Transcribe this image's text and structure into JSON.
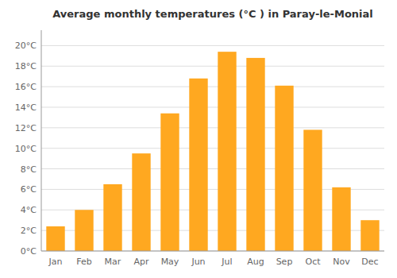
{
  "chart_data": {
    "type": "bar",
    "title": "Average monthly temperatures (°C ) in Paray-le-Monial",
    "categories": [
      "Jan",
      "Feb",
      "Mar",
      "Apr",
      "May",
      "Jun",
      "Jul",
      "Aug",
      "Sep",
      "Oct",
      "Nov",
      "Dec"
    ],
    "values": [
      2.4,
      4.0,
      6.5,
      9.5,
      13.4,
      16.8,
      19.4,
      18.8,
      16.1,
      11.8,
      6.2,
      3.0
    ],
    "color": "#FFA820",
    "ylim": [
      0,
      21.5
    ],
    "yticks": [
      {
        "value": 0,
        "label": "0°C"
      },
      {
        "value": 2,
        "label": "2°C"
      },
      {
        "value": 4,
        "label": "4°C"
      },
      {
        "value": 6,
        "label": "6°C"
      },
      {
        "value": 8,
        "label": "8°C"
      },
      {
        "value": 10,
        "label": "10°C"
      },
      {
        "value": 12,
        "label": "12°C"
      },
      {
        "value": 14,
        "label": "14°C"
      },
      {
        "value": 16,
        "label": "16°C"
      },
      {
        "value": 18,
        "label": "18°C"
      },
      {
        "value": 20,
        "label": "20°C"
      }
    ],
    "grid": true
  }
}
